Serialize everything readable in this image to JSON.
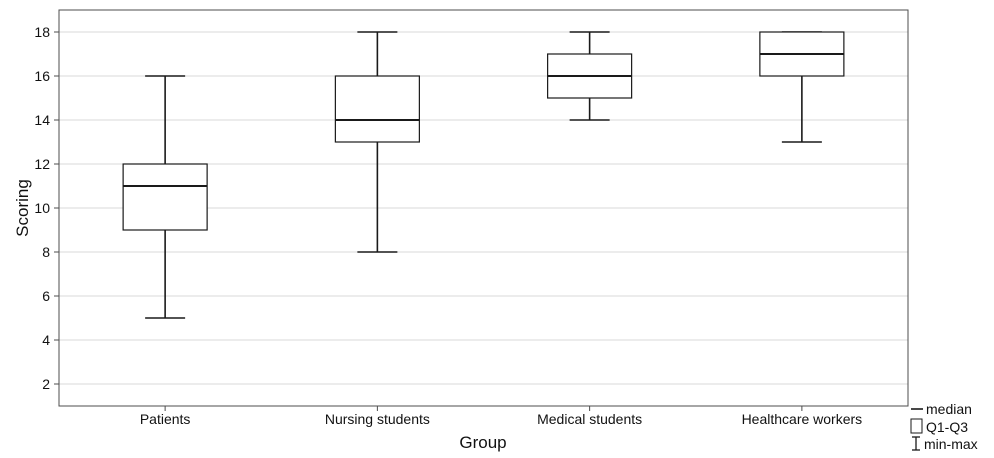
{
  "chart_data": {
    "type": "boxplot",
    "xlabel": "Group",
    "ylabel": "Scoring",
    "ylim": [
      1,
      19
    ],
    "yticks": [
      2,
      4,
      6,
      8,
      10,
      12,
      14,
      16,
      18
    ],
    "grid": true,
    "categories": [
      "Patients",
      "Nursing students",
      "Medical students",
      "Healthcare workers"
    ],
    "boxes": [
      {
        "min": 5,
        "q1": 9,
        "median": 11,
        "q3": 12,
        "max": 16
      },
      {
        "min": 8,
        "q1": 13,
        "median": 14,
        "q3": 16,
        "max": 18
      },
      {
        "min": 14,
        "q1": 15,
        "median": 16,
        "q3": 17,
        "max": 18
      },
      {
        "min": 13,
        "q1": 16,
        "median": 17,
        "q3": 18,
        "max": 18
      }
    ],
    "legend": {
      "position": "bottom-right",
      "items": [
        {
          "symbol": "median-line",
          "label": "median"
        },
        {
          "symbol": "box",
          "label": "Q1-Q3"
        },
        {
          "symbol": "whisker",
          "label": "min-max"
        }
      ]
    },
    "colors": {
      "box_fill": "#ffffff",
      "stroke": "#1a1a1a",
      "grid": "#d9d9d9",
      "frame": "#4d4d4d"
    }
  }
}
